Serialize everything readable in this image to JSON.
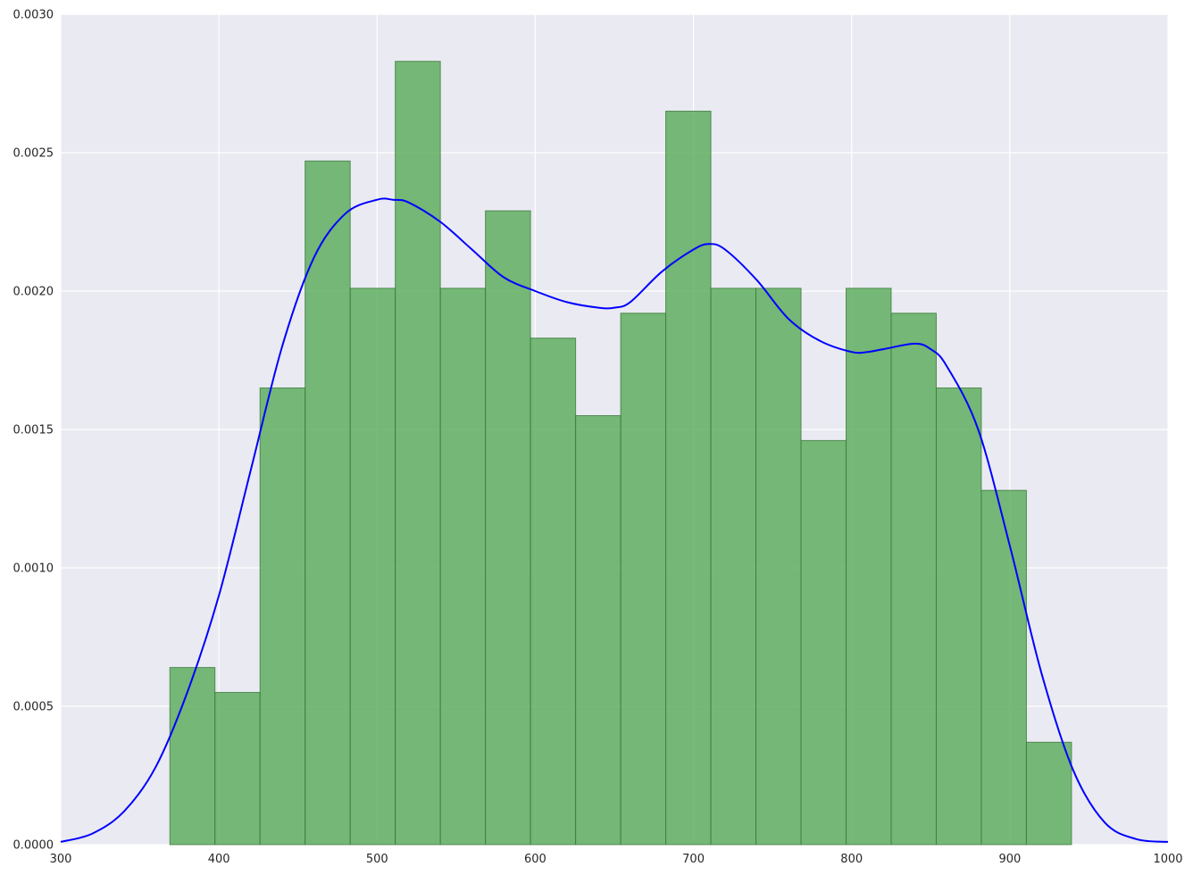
{
  "chart_data": {
    "type": "bar",
    "subtype": "histogram-with-kde",
    "title": "",
    "xlabel": "",
    "ylabel": "",
    "xlim": [
      300,
      1000
    ],
    "ylim": [
      0,
      0.003
    ],
    "xticks": [
      300,
      400,
      500,
      600,
      700,
      800,
      900,
      1000
    ],
    "xtick_labels": [
      "300",
      "400",
      "500",
      "600",
      "700",
      "800",
      "900",
      "1000"
    ],
    "yticks": [
      0,
      0.0005,
      0.001,
      0.0015,
      0.002,
      0.0025,
      0.003
    ],
    "ytick_labels": [
      "0.0000",
      "0.0005",
      "0.0010",
      "0.0015",
      "0.0020",
      "0.0025",
      "0.0030"
    ],
    "grid": true,
    "legend": "none",
    "colors": {
      "bars": "#4ca64c",
      "kde": "#0000ff",
      "background": "#eaeaf2",
      "grid": "#ffffff"
    },
    "bins": [
      {
        "x0": 369,
        "x1": 397.5,
        "value": 0.00064
      },
      {
        "x0": 397.5,
        "x1": 426,
        "value": 0.00055
      },
      {
        "x0": 426,
        "x1": 454.5,
        "value": 0.00165
      },
      {
        "x0": 454.5,
        "x1": 483,
        "value": 0.00247
      },
      {
        "x0": 483,
        "x1": 511.5,
        "value": 0.00201
      },
      {
        "x0": 511.5,
        "x1": 540,
        "value": 0.00283
      },
      {
        "x0": 540,
        "x1": 568.5,
        "value": 0.00201
      },
      {
        "x0": 568.5,
        "x1": 597,
        "value": 0.00229
      },
      {
        "x0": 597,
        "x1": 625.5,
        "value": 0.00183
      },
      {
        "x0": 625.5,
        "x1": 654,
        "value": 0.00155
      },
      {
        "x0": 654,
        "x1": 682.5,
        "value": 0.00192
      },
      {
        "x0": 682.5,
        "x1": 711,
        "value": 0.00265
      },
      {
        "x0": 711,
        "x1": 739.5,
        "value": 0.00201
      },
      {
        "x0": 739.5,
        "x1": 768,
        "value": 0.00201
      },
      {
        "x0": 768,
        "x1": 796.5,
        "value": 0.00146
      },
      {
        "x0": 796.5,
        "x1": 825,
        "value": 0.00201
      },
      {
        "x0": 825,
        "x1": 853.5,
        "value": 0.00192
      },
      {
        "x0": 853.5,
        "x1": 882,
        "value": 0.00165
      },
      {
        "x0": 882,
        "x1": 910.5,
        "value": 0.00128
      },
      {
        "x0": 910.5,
        "x1": 939,
        "value": 0.00037
      }
    ],
    "kde": {
      "x": [
        300,
        320,
        340,
        360,
        380,
        400,
        420,
        440,
        460,
        480,
        500,
        510,
        520,
        540,
        560,
        580,
        600,
        620,
        640,
        650,
        660,
        680,
        700,
        710,
        720,
        740,
        760,
        780,
        800,
        810,
        820,
        840,
        850,
        860,
        880,
        900,
        920,
        940,
        960,
        980,
        1000
      ],
      "y": [
        1e-05,
        4e-05,
        0.00012,
        0.00028,
        0.00055,
        0.0009,
        0.00135,
        0.0018,
        0.00212,
        0.00228,
        0.00233,
        0.00233,
        0.00232,
        0.00225,
        0.00215,
        0.00205,
        0.002,
        0.00196,
        0.00194,
        0.00194,
        0.00196,
        0.00207,
        0.00215,
        0.00217,
        0.00215,
        0.00204,
        0.0019,
        0.00182,
        0.00178,
        0.00178,
        0.00179,
        0.00181,
        0.00179,
        0.00173,
        0.0015,
        0.00108,
        0.00062,
        0.00027,
        8e-05,
        2e-05,
        1e-05
      ]
    }
  }
}
